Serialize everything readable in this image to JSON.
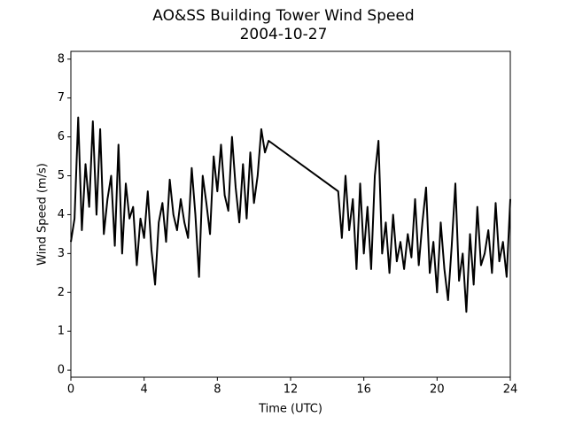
{
  "chart_data": {
    "type": "line",
    "title": "AO&SS Building Tower Wind Speed",
    "subtitle": "2004-10-27",
    "x_label": "Time (UTC)",
    "y_label": "Wind Speed (m/s)",
    "x": [
      0,
      0.2,
      0.4,
      0.6,
      0.8,
      1,
      1.2,
      1.4,
      1.6,
      1.8,
      2,
      2.2,
      2.4,
      2.6,
      2.8,
      3,
      3.2,
      3.4,
      3.6,
      3.8,
      4,
      4.2,
      4.4,
      4.6,
      4.8,
      5,
      5.2,
      5.4,
      5.6,
      5.8,
      6,
      6.2,
      6.4,
      6.6,
      6.8,
      7,
      7.2,
      7.4,
      7.6,
      7.8,
      8,
      8.2,
      8.4,
      8.6,
      8.8,
      9,
      9.2,
      9.4,
      9.6,
      9.8,
      10,
      10.2,
      10.4,
      10.6,
      10.8,
      14.6,
      14.8,
      15,
      15.2,
      15.4,
      15.6,
      15.8,
      16,
      16.2,
      16.4,
      16.6,
      16.8,
      17,
      17.2,
      17.4,
      17.6,
      17.8,
      18,
      18.2,
      18.4,
      18.6,
      18.8,
      19,
      19.2,
      19.4,
      19.6,
      19.8,
      20,
      20.2,
      20.4,
      20.6,
      20.8,
      21,
      21.2,
      21.4,
      21.6,
      21.8,
      22,
      22.2,
      22.4,
      22.6,
      22.8,
      23,
      23.2,
      23.4,
      23.6,
      23.8,
      24
    ],
    "series": [
      {
        "color": "#000000",
        "values": [
          3.3,
          3.9,
          6.5,
          3.6,
          5.3,
          4.2,
          6.4,
          4.0,
          6.2,
          3.5,
          4.4,
          5.0,
          3.2,
          5.8,
          3.0,
          4.8,
          3.9,
          4.2,
          2.7,
          3.9,
          3.4,
          4.6,
          3.1,
          2.2,
          3.8,
          4.3,
          3.3,
          4.9,
          4.0,
          3.6,
          4.4,
          3.8,
          3.4,
          5.2,
          4.0,
          2.4,
          5.0,
          4.3,
          3.5,
          5.5,
          4.6,
          5.8,
          4.5,
          4.1,
          6.0,
          4.7,
          3.8,
          5.3,
          3.9,
          5.6,
          4.3,
          5.0,
          6.2,
          5.6,
          5.9,
          4.6,
          3.4,
          5.0,
          3.6,
          4.4,
          2.6,
          4.8,
          3.0,
          4.2,
          2.6,
          5.0,
          5.9,
          3.0,
          3.8,
          2.5,
          4.0,
          2.8,
          3.3,
          2.6,
          3.5,
          2.9,
          4.4,
          2.7,
          3.8,
          4.7,
          2.5,
          3.3,
          2.0,
          3.8,
          2.6,
          1.8,
          3.2,
          4.8,
          2.3,
          3.0,
          1.5,
          3.5,
          2.2,
          4.2,
          2.7,
          3.0,
          3.6,
          2.5,
          4.3,
          2.8,
          3.3,
          2.4,
          4.4
        ]
      }
    ],
    "xlim": [
      0,
      24
    ],
    "xticks": [
      0,
      4,
      8,
      12,
      16,
      20,
      24
    ],
    "ylim": [
      -0.18,
      8.2
    ],
    "yticks": [
      0,
      1,
      2,
      3,
      4,
      5,
      6,
      7,
      8
    ],
    "grid": false
  }
}
